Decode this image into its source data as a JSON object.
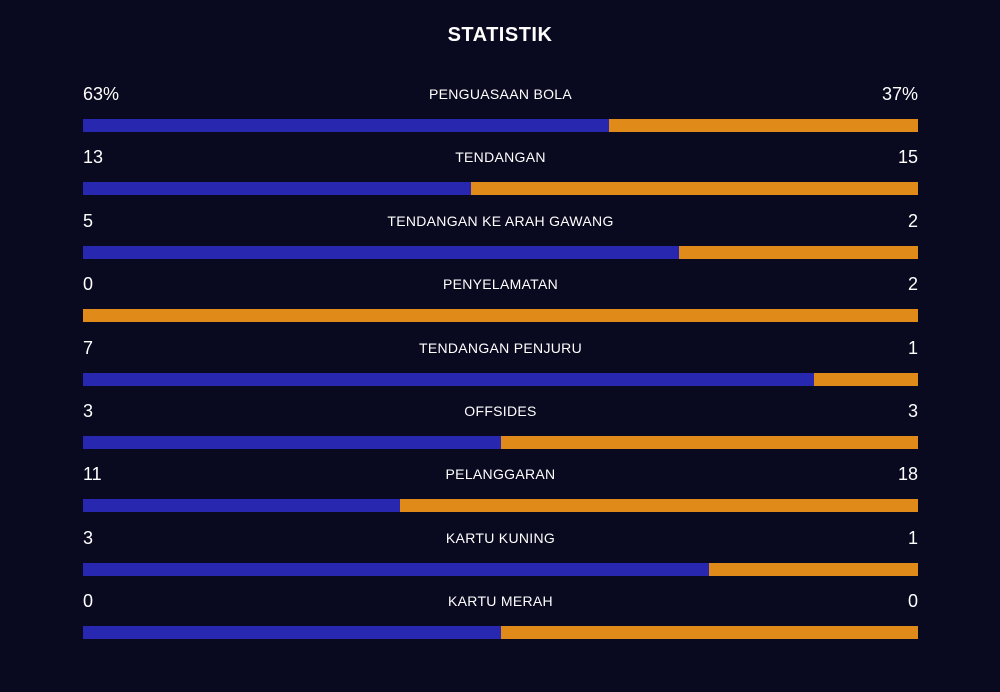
{
  "title": "STATISTIK",
  "colors": {
    "background": "#09091f",
    "home": "#2727b0",
    "away": "#e08a1a"
  },
  "stats": [
    {
      "label": "PENGUASAAN BOLA",
      "home": "63%",
      "away": "37%",
      "home_share": 0.63
    },
    {
      "label": "TENDANGAN",
      "home": "13",
      "away": "15",
      "home_share": 0.4643
    },
    {
      "label": "TENDANGAN KE ARAH GAWANG",
      "home": "5",
      "away": "2",
      "home_share": 0.7143
    },
    {
      "label": "PENYELAMATAN",
      "home": "0",
      "away": "2",
      "home_share": 0
    },
    {
      "label": "TENDANGAN PENJURU",
      "home": "7",
      "away": "1",
      "home_share": 0.875
    },
    {
      "label": "OFFSIDES",
      "home": "3",
      "away": "3",
      "home_share": 0.5
    },
    {
      "label": "PELANGGARAN",
      "home": "11",
      "away": "18",
      "home_share": 0.3793
    },
    {
      "label": "KARTU KUNING",
      "home": "3",
      "away": "1",
      "home_share": 0.75
    },
    {
      "label": "KARTU MERAH",
      "home": "0",
      "away": "0",
      "home_share": 0.5
    }
  ]
}
